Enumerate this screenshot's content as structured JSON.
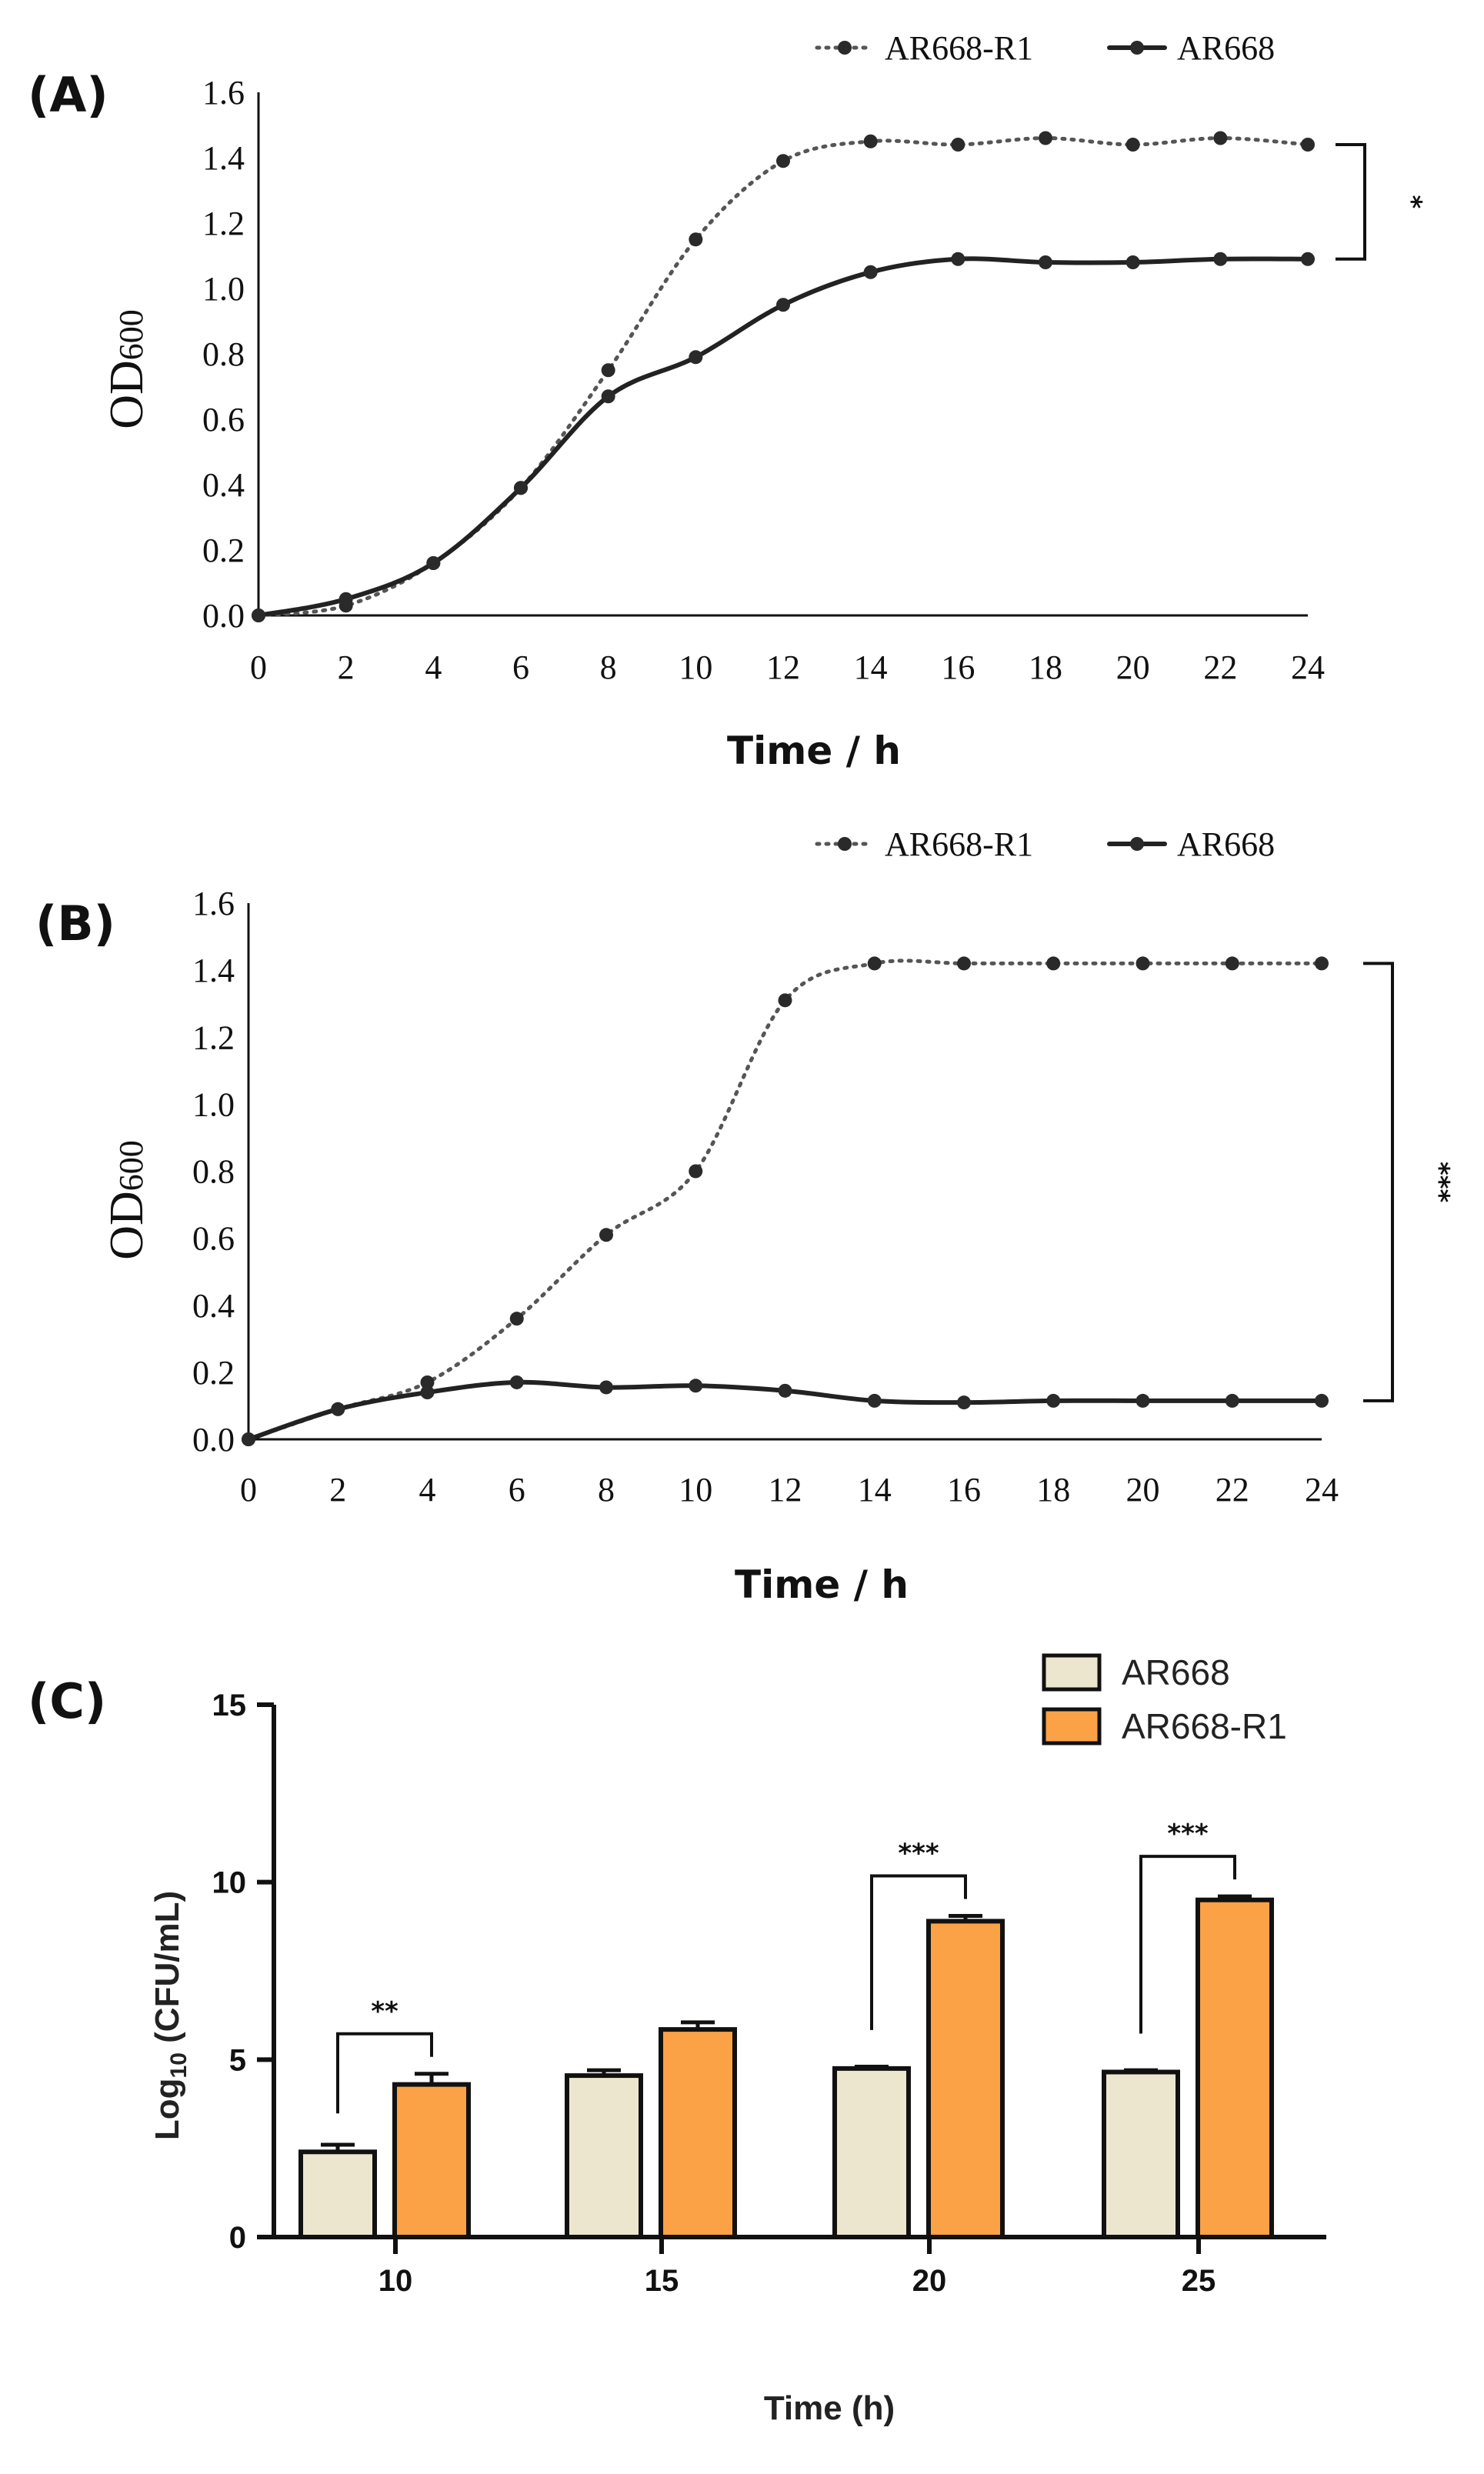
{
  "chart_data": [
    {
      "panel": "(A)",
      "type": "line",
      "xlabel": "Time / h",
      "ylabel": "OD",
      "ylabel_subscript": "600",
      "xlim": [
        0,
        24
      ],
      "ylim": [
        0,
        1.6
      ],
      "x_ticks": [
        0,
        2,
        4,
        6,
        8,
        10,
        12,
        14,
        16,
        18,
        20,
        22,
        24
      ],
      "y_ticks": [
        "0.0",
        "0.2",
        "0.4",
        "0.6",
        "0.8",
        "1.0",
        "1.2",
        "1.4",
        "1.6"
      ],
      "legend": "top-right",
      "series": [
        {
          "name": "AR668-R1",
          "style": "dotted",
          "x": [
            0,
            2,
            4,
            6,
            8,
            10,
            12,
            14,
            16,
            18,
            20,
            22,
            24
          ],
          "y": [
            0.0,
            0.03,
            0.16,
            0.39,
            0.75,
            1.15,
            1.39,
            1.45,
            1.44,
            1.46,
            1.44,
            1.46,
            1.44
          ]
        },
        {
          "name": "AR668",
          "style": "solid",
          "x": [
            0,
            2,
            4,
            6,
            8,
            10,
            12,
            14,
            16,
            18,
            20,
            22,
            24
          ],
          "y": [
            0.0,
            0.05,
            0.16,
            0.39,
            0.67,
            0.79,
            0.95,
            1.05,
            1.09,
            1.08,
            1.08,
            1.09,
            1.09
          ]
        }
      ],
      "significance": {
        "label": "*",
        "from": 1.44,
        "to": 1.09
      }
    },
    {
      "panel": "(B)",
      "type": "line",
      "xlabel": "Time / h",
      "ylabel": "OD",
      "ylabel_subscript": "600",
      "xlim": [
        0,
        24
      ],
      "ylim": [
        0,
        1.6
      ],
      "x_ticks": [
        0,
        2,
        4,
        6,
        8,
        10,
        12,
        14,
        16,
        18,
        20,
        22,
        24
      ],
      "y_ticks": [
        "0.0",
        "0.2",
        "0.4",
        "0.6",
        "0.8",
        "1.0",
        "1.2",
        "1.4",
        "1.6"
      ],
      "legend": "top-right",
      "series": [
        {
          "name": "AR668-R1",
          "style": "dotted",
          "x": [
            0,
            2,
            4,
            6,
            8,
            10,
            12,
            14,
            16,
            18,
            20,
            22,
            24
          ],
          "y": [
            0.0,
            0.09,
            0.17,
            0.36,
            0.61,
            0.8,
            1.31,
            1.42,
            1.42,
            1.42,
            1.42,
            1.42,
            1.42
          ]
        },
        {
          "name": "AR668",
          "style": "solid",
          "x": [
            0,
            2,
            4,
            6,
            8,
            10,
            12,
            14,
            16,
            18,
            20,
            22,
            24
          ],
          "y": [
            0.0,
            0.09,
            0.14,
            0.17,
            0.155,
            0.16,
            0.145,
            0.115,
            0.11,
            0.115,
            0.115,
            0.115,
            0.115
          ]
        }
      ],
      "significance": {
        "label": "***",
        "from": 1.42,
        "to": 0.115
      }
    },
    {
      "panel": "(C)",
      "type": "bar",
      "xlabel": "Time (h)",
      "ylabel_prefix": "Log",
      "ylabel_subscript": "10",
      "ylabel_suffix": " (CFU/mL)",
      "categories": [
        "10",
        "15",
        "20",
        "25"
      ],
      "ylim": [
        0,
        15
      ],
      "y_ticks": [
        "0",
        "5",
        "10",
        "15"
      ],
      "legend": "top-right",
      "series": [
        {
          "name": "AR668",
          "color": "#ede6cf",
          "values": [
            2.4,
            4.55,
            4.75,
            4.65
          ],
          "errors": [
            0.2,
            0.15,
            0.05,
            0.05
          ]
        },
        {
          "name": "AR668-R1",
          "color": "#fba146",
          "values": [
            4.3,
            5.85,
            8.9,
            9.5
          ],
          "errors": [
            0.3,
            0.2,
            0.15,
            0.1
          ]
        }
      ],
      "significance": [
        {
          "category": "10",
          "label": "**"
        },
        {
          "category": "20",
          "label": "***"
        },
        {
          "category": "25",
          "label": "***"
        }
      ]
    }
  ]
}
